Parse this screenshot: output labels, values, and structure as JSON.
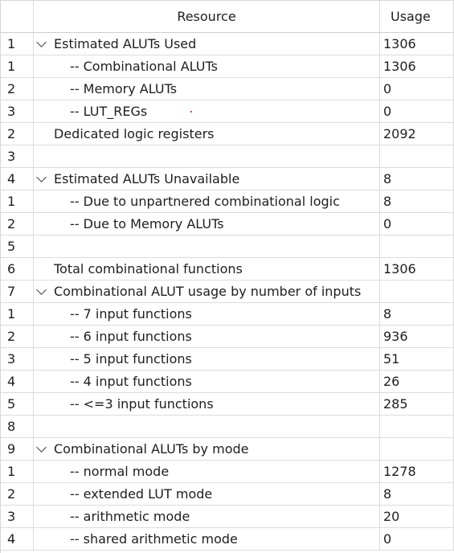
{
  "table": {
    "headers": {
      "num": "",
      "resource": "Resource",
      "usage": "Usage"
    },
    "rows": [
      {
        "num": "1",
        "label": "Estimated ALUTs Used",
        "usage": "1306",
        "expandable": true,
        "level": 0
      },
      {
        "num": "1",
        "label": "-- Combinational ALUTs",
        "usage": "1306",
        "expandable": false,
        "level": 1
      },
      {
        "num": "2",
        "label": "-- Memory ALUTs",
        "usage": "0",
        "expandable": false,
        "level": 1
      },
      {
        "num": "3",
        "label": "-- LUT_REGs",
        "usage": "0",
        "expandable": false,
        "level": 1
      },
      {
        "num": "2",
        "label": "Dedicated logic registers",
        "usage": "2092",
        "expandable": false,
        "level": 0
      },
      {
        "num": "3",
        "label": "",
        "usage": "",
        "expandable": false,
        "level": 0
      },
      {
        "num": "4",
        "label": "Estimated ALUTs Unavailable",
        "usage": "8",
        "expandable": true,
        "level": 0
      },
      {
        "num": "1",
        "label": "-- Due to unpartnered combinational logic",
        "usage": "8",
        "expandable": false,
        "level": 1
      },
      {
        "num": "2",
        "label": "-- Due to Memory ALUTs",
        "usage": "0",
        "expandable": false,
        "level": 1
      },
      {
        "num": "5",
        "label": "",
        "usage": "",
        "expandable": false,
        "level": 0
      },
      {
        "num": "6",
        "label": "Total combinational functions",
        "usage": "1306",
        "expandable": false,
        "level": 0
      },
      {
        "num": "7",
        "label": "Combinational ALUT usage by number of inputs",
        "usage": "",
        "expandable": true,
        "level": 0
      },
      {
        "num": "1",
        "label": "-- 7 input functions",
        "usage": "8",
        "expandable": false,
        "level": 1
      },
      {
        "num": "2",
        "label": "-- 6 input functions",
        "usage": "936",
        "expandable": false,
        "level": 1
      },
      {
        "num": "3",
        "label": "-- 5 input functions",
        "usage": "51",
        "expandable": false,
        "level": 1
      },
      {
        "num": "4",
        "label": "-- 4 input functions",
        "usage": "26",
        "expandable": false,
        "level": 1
      },
      {
        "num": "5",
        "label": "-- <=3 input functions",
        "usage": "285",
        "expandable": false,
        "level": 1
      },
      {
        "num": "8",
        "label": "",
        "usage": "",
        "expandable": false,
        "level": 0
      },
      {
        "num": "9",
        "label": "Combinational ALUTs by mode",
        "usage": "",
        "expandable": true,
        "level": 0
      },
      {
        "num": "1",
        "label": "-- normal mode",
        "usage": "1278",
        "expandable": false,
        "level": 1
      },
      {
        "num": "2",
        "label": "-- extended LUT mode",
        "usage": "8",
        "expandable": false,
        "level": 1
      },
      {
        "num": "3",
        "label": "-- arithmetic mode",
        "usage": "20",
        "expandable": false,
        "level": 1
      },
      {
        "num": "4",
        "label": "-- shared arithmetic mode",
        "usage": "0",
        "expandable": false,
        "level": 1
      }
    ]
  }
}
